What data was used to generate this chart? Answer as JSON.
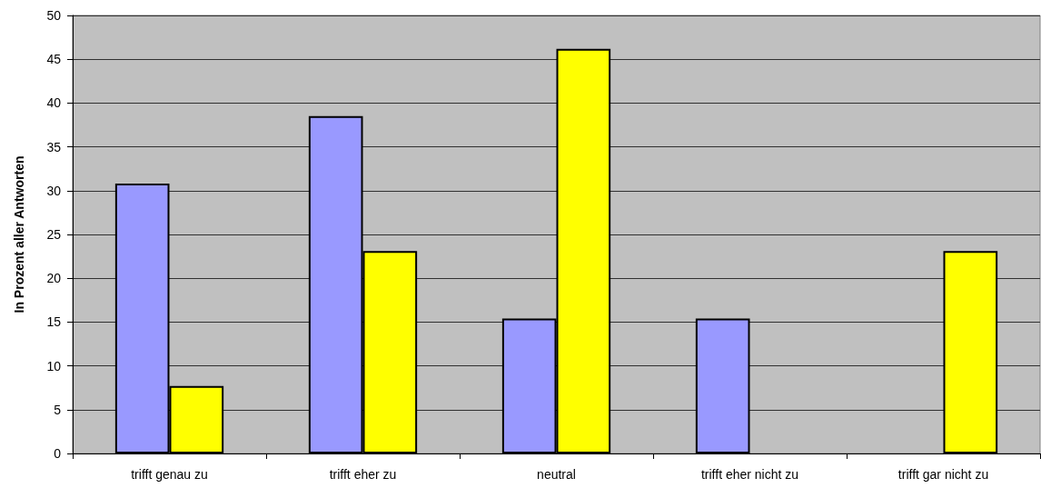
{
  "chart_data": {
    "type": "bar",
    "ylabel": "In Prozent aller Antworten",
    "categories": [
      "trifft genau zu",
      "trifft eher zu",
      "neutral",
      "trifft eher nicht zu",
      "trifft gar nicht zu"
    ],
    "series": [
      {
        "color": "#9999ff",
        "values": [
          30.8,
          38.5,
          15.4,
          15.4,
          0
        ]
      },
      {
        "color": "#ffff00",
        "values": [
          7.7,
          23.1,
          46.2,
          0,
          23.1
        ]
      }
    ],
    "ylim": [
      0,
      50
    ],
    "yticks": [
      0,
      5,
      10,
      15,
      20,
      25,
      30,
      35,
      40,
      45,
      50
    ],
    "grid": "y"
  }
}
